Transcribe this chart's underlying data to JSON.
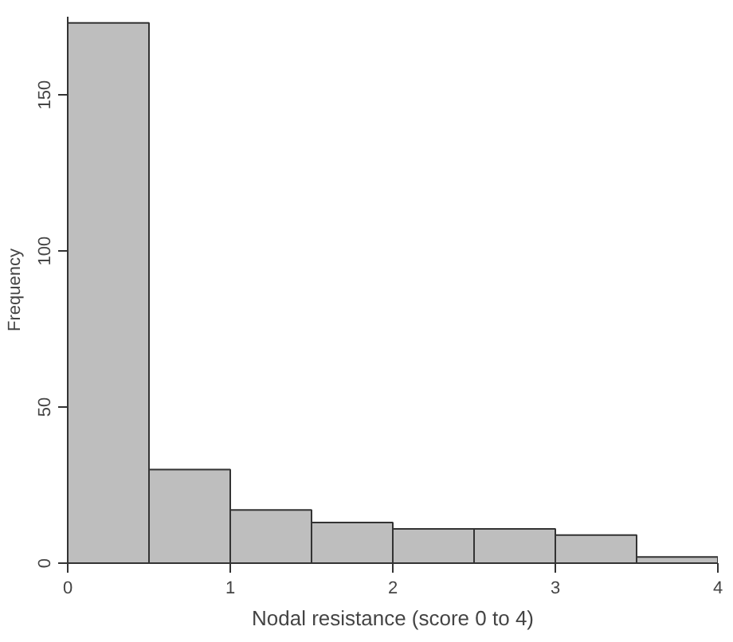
{
  "chart_data": {
    "type": "histogram",
    "xlabel": "Nodal resistance (score 0 to 4)",
    "ylabel": "Frequency",
    "bins": [
      0,
      0.5,
      1,
      1.5,
      2,
      2.5,
      3,
      3.5,
      4
    ],
    "values": [
      173,
      30,
      17,
      13,
      11,
      11,
      9,
      2
    ],
    "color": "#bebebe",
    "xlim": [
      0,
      4
    ],
    "xticks": [
      0,
      1,
      2,
      3,
      4
    ],
    "ylim": [
      0,
      175
    ],
    "yticks": [
      0,
      50,
      100,
      150
    ],
    "grid": false
  }
}
